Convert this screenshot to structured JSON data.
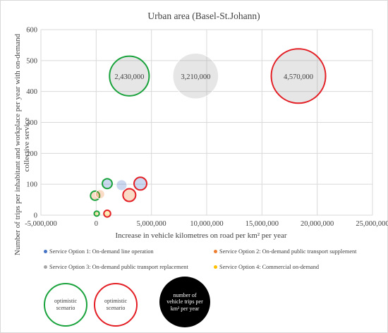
{
  "chart_data": {
    "type": "bubble",
    "title": "Urban area (Basel-St.Johann)",
    "xlabel": "Increase in vehicle kilometres on road per km² per year",
    "ylabel_line1": "Number of trips per inhabitant and workplace per year with on-demand",
    "ylabel_line2": "collective service",
    "xlim": [
      -5000000,
      25000000
    ],
    "ylim": [
      0,
      600
    ],
    "x_ticks": [
      -5000000,
      0,
      5000000,
      10000000,
      15000000,
      20000000,
      25000000
    ],
    "x_tick_labels": [
      "-5,000,000",
      "0",
      "5,000,000",
      "10,000,000",
      "15,000,000",
      "20,000,000",
      "25,000,000"
    ],
    "y_ticks": [
      0,
      100,
      200,
      300,
      400,
      500,
      600
    ],
    "y_tick_labels": [
      "0",
      "100",
      "200",
      "300",
      "400",
      "500",
      "600"
    ],
    "grid": true,
    "legend_position": "bottom",
    "series": [
      {
        "name": "Service Option 1: On-demand line operation",
        "color": "#4472c4",
        "points": [
          {
            "x": 2300000,
            "y": 97,
            "size": 180000
          },
          {
            "x": 1000000,
            "y": 102,
            "size": 150000,
            "scenario": "optimistic",
            "outline": "#1aa33c"
          },
          {
            "x": 4000000,
            "y": 102,
            "size": 250000,
            "scenario": "optimistic",
            "outline": "#e31e24"
          }
        ]
      },
      {
        "name": "Service Option 2: On-demand public transport supplement",
        "color": "#ed7d31",
        "points": [
          {
            "x": -100000,
            "y": 63,
            "size": 130000,
            "scenario": "optimistic",
            "outline": "#1aa33c"
          },
          {
            "x": 350000,
            "y": 68,
            "size": 130000
          },
          {
            "x": 3000000,
            "y": 65,
            "size": 250000,
            "scenario": "optimistic",
            "outline": "#e31e24"
          }
        ]
      },
      {
        "name": "Service Option 3: On-demand public transport replacement",
        "color": "#a5a5a5",
        "points": [
          {
            "x": 3000000,
            "y": 450,
            "size": 2430000,
            "label": "2,430,000",
            "scenario": "optimistic",
            "outline": "#1aa33c"
          },
          {
            "x": 9000000,
            "y": 450,
            "size": 3210000,
            "label": "3,210,000"
          },
          {
            "x": 18300000,
            "y": 450,
            "size": 4570000,
            "label": "4,570,000",
            "scenario": "optimistic",
            "outline": "#e31e24"
          }
        ]
      },
      {
        "name": "Service Option 4: Commercial on-demand",
        "color": "#ffc000",
        "points": [
          {
            "x": 50000,
            "y": 5,
            "size": 40000,
            "scenario": "optimistic",
            "outline": "#1aa33c"
          },
          {
            "x": 1000000,
            "y": 5,
            "size": 70000,
            "scenario": "optimistic",
            "outline": "#e31e24"
          }
        ]
      }
    ]
  },
  "legend": {
    "optimistic_green": "optimistic scenario",
    "optimistic_red": "optimistic scenario",
    "size_note": "number of vehicle trips per km² per year"
  },
  "colors": {
    "green_outline": "#1aa33c",
    "red_outline": "#e31e24",
    "grid": "#d9d9d9",
    "text": "#404040"
  }
}
